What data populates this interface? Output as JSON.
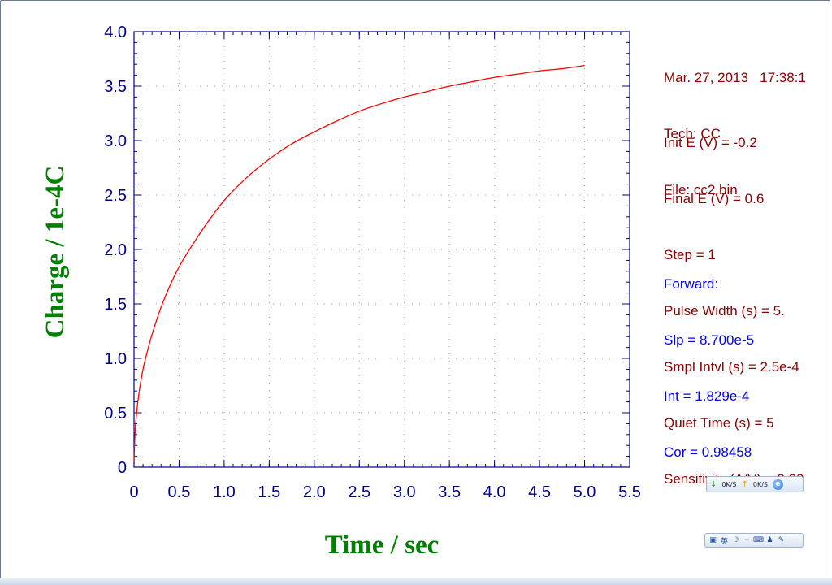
{
  "chart_data": {
    "type": "line",
    "xlabel": "Time / sec",
    "ylabel": "Charge / 1e-4C",
    "xlim": [
      0,
      5.5
    ],
    "ylim": [
      0,
      4.0
    ],
    "xticks": [
      "0",
      "0.5",
      "1.0",
      "1.5",
      "2.0",
      "2.5",
      "3.0",
      "3.5",
      "4.0",
      "4.5",
      "5.0",
      "5.5"
    ],
    "yticks": [
      "0",
      "0.5",
      "1.0",
      "1.5",
      "2.0",
      "2.5",
      "3.0",
      "3.5",
      "4.0"
    ],
    "grid": "dotted",
    "series": [
      {
        "color": "#ff0000",
        "x": [
          0,
          0.01,
          0.02,
          0.05,
          0.1,
          0.15,
          0.2,
          0.3,
          0.4,
          0.5,
          0.6,
          0.8,
          1.0,
          1.25,
          1.5,
          1.75,
          2.0,
          2.25,
          2.5,
          2.75,
          3.0,
          3.25,
          3.5,
          3.75,
          4.0,
          4.25,
          4.5,
          4.75,
          5.0
        ],
        "y": [
          0.05,
          0.3,
          0.42,
          0.65,
          0.9,
          1.07,
          1.22,
          1.47,
          1.67,
          1.84,
          1.98,
          2.23,
          2.45,
          2.66,
          2.83,
          2.97,
          3.08,
          3.18,
          3.27,
          3.34,
          3.4,
          3.45,
          3.5,
          3.54,
          3.58,
          3.61,
          3.64,
          3.66,
          3.69
        ]
      }
    ]
  },
  "info": {
    "header": [
      "Mar. 27, 2013   17:38:1",
      "Tech: CC",
      "File: cc2.bin"
    ],
    "params": [
      "Init E (V) = -0.2",
      "Final E (V) = 0.6",
      "Step = 1",
      "Pulse Width (s) = 5.",
      "Smpl Intvl (s) = 2.5e-4",
      "Quiet Time (s) = 5",
      "Sensitivity (A/V) = 0.00"
    ],
    "results": [
      "Forward:",
      "Slp = 8.700e-5",
      "Int = 1.829e-4",
      "Cor = 0.98458"
    ]
  },
  "net_widget": {
    "down": "0K/S",
    "up": "0K/S"
  },
  "ime_toolbar": {
    "lang": "英"
  },
  "colors": {
    "axis": "#00008b",
    "tick_label": "#00008b",
    "axis_title": "#008000",
    "series": "#ff0000",
    "info_text": "#8b0000",
    "results_text": "#0000ff"
  }
}
